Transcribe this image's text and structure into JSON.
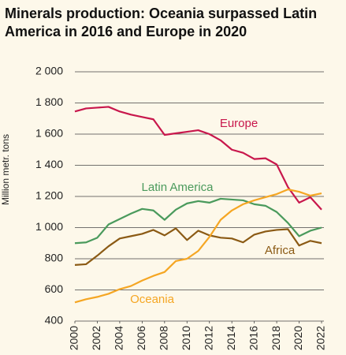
{
  "chart_data": {
    "type": "line",
    "title": "Minerals production: Oceania surpassed Latin America in 2016 and Europe in 2020",
    "y_label": "Million metr. tons",
    "x": [
      2000,
      2001,
      2002,
      2003,
      2004,
      2005,
      2006,
      2007,
      2008,
      2009,
      2010,
      2011,
      2012,
      2013,
      2014,
      2015,
      2016,
      2017,
      2018,
      2019,
      2020,
      2021,
      2022
    ],
    "xlim": [
      2000,
      2022
    ],
    "xticks": [
      2000,
      2002,
      2004,
      2006,
      2008,
      2010,
      2012,
      2014,
      2016,
      2018,
      2020,
      2022
    ],
    "ylim": [
      400,
      2000
    ],
    "yticks": [
      400,
      600,
      800,
      {
        "value": 1000,
        "label": "1 000"
      },
      {
        "value": 1200,
        "label": "1 200"
      },
      {
        "value": 1400,
        "label": "1 400"
      },
      {
        "value": 1600,
        "label": "1 600"
      },
      {
        "value": 1800,
        "label": "1 800"
      },
      {
        "value": 2000,
        "label": "2 000"
      }
    ],
    "grid": true,
    "series": [
      {
        "name": "Europe",
        "color": "#c8174c",
        "values": [
          1745,
          1765,
          1770,
          1775,
          1745,
          1725,
          1710,
          1695,
          1595,
          1605,
          1615,
          1625,
          1600,
          1560,
          1500,
          1480,
          1440,
          1445,
          1405,
          1260,
          1160,
          1195,
          1115
        ]
      },
      {
        "name": "Latin America",
        "color": "#4a9a5c",
        "values": [
          900,
          905,
          935,
          1020,
          1055,
          1090,
          1120,
          1110,
          1050,
          1115,
          1155,
          1170,
          1160,
          1185,
          1180,
          1175,
          1150,
          1140,
          1100,
          1030,
          945,
          980,
          1000
        ]
      },
      {
        "name": "Africa",
        "color": "#8b5a14",
        "values": [
          760,
          765,
          820,
          880,
          930,
          945,
          960,
          985,
          950,
          995,
          920,
          980,
          950,
          935,
          930,
          905,
          955,
          975,
          985,
          990,
          885,
          915,
          900
        ]
      },
      {
        "name": "Oceania",
        "color": "#f5a623",
        "values": [
          520,
          540,
          555,
          575,
          605,
          625,
          660,
          690,
          715,
          785,
          800,
          850,
          940,
          1050,
          1110,
          1150,
          1175,
          1195,
          1215,
          1245,
          1230,
          1205,
          1220
        ]
      }
    ]
  }
}
